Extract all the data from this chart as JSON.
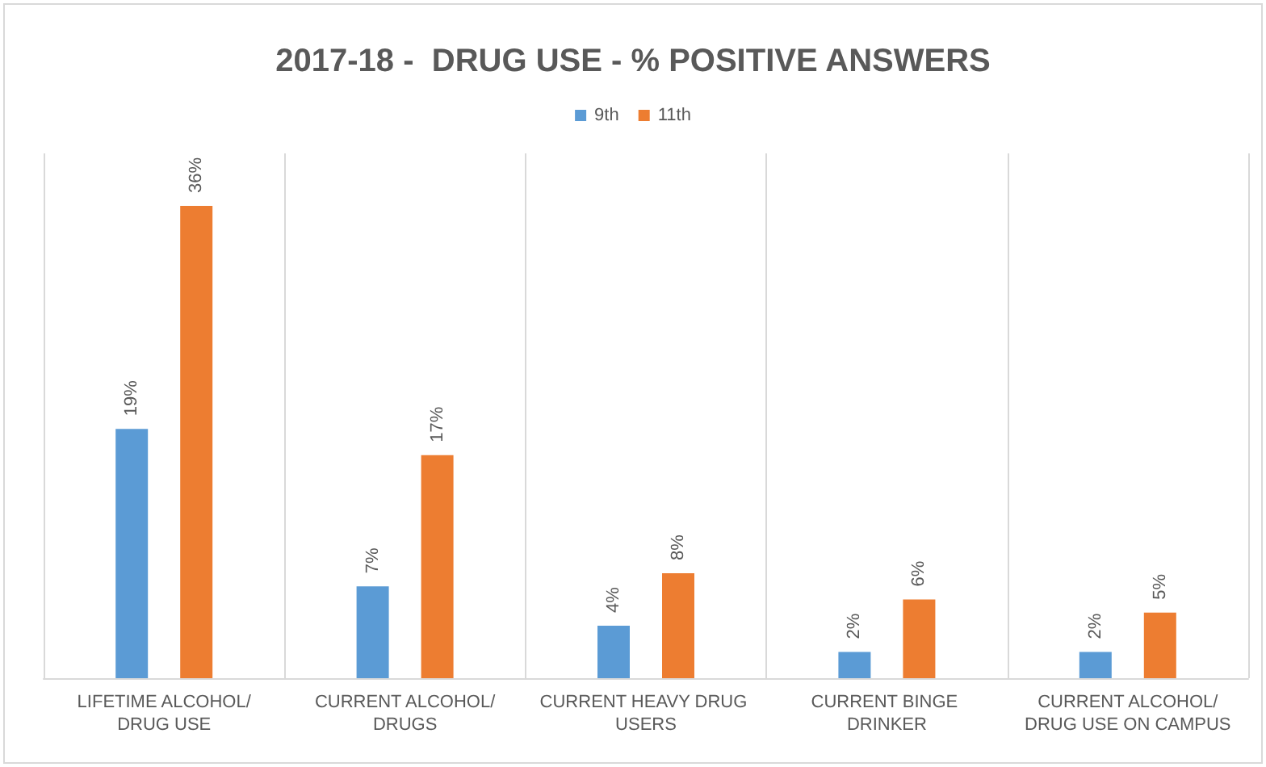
{
  "chart_data": {
    "type": "bar",
    "title": "2017-18 -  DRUG USE - % POSITIVE ANSWERS",
    "categories": [
      "LIFETIME ALCOHOL/DRUG USE",
      "CURRENT ALCOHOL/DRUGS",
      "CURRENT HEAVY DRUG USERS",
      "CURRENT BINGE DRINKER",
      "CURRENT ALCOHOL/DRUG USE ON CAMPUS"
    ],
    "series": [
      {
        "name": "9th",
        "color": "#5b9bd5",
        "values": [
          19,
          7,
          4,
          2,
          2
        ],
        "value_labels": [
          "19%",
          "7%",
          "4%",
          "2%",
          "2%"
        ]
      },
      {
        "name": "11th",
        "color": "#ed7d31",
        "values": [
          36,
          17,
          8,
          6,
          5
        ],
        "value_labels": [
          "36%",
          "17%",
          "8%",
          "6%",
          "5%"
        ]
      }
    ],
    "grid": "x",
    "legend": "top"
  }
}
